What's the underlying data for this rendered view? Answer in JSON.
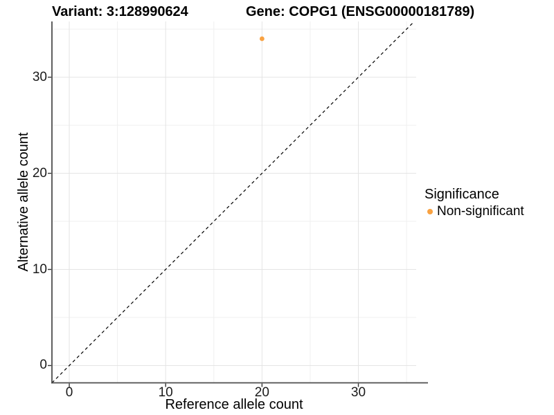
{
  "figure": {
    "titles": {
      "variant": "Variant: 3:128990624",
      "gene": "Gene: COPG1 (ENSG00000181789)"
    }
  },
  "legend": {
    "title": "Significance",
    "items": [
      {
        "label": "Non-significant",
        "color": "#F9A242"
      }
    ]
  },
  "chart_data": {
    "type": "scatter",
    "titles": [
      "Variant: 3:128990624",
      "Gene: COPG1 (ENSG00000181789)"
    ],
    "xlabel": "Reference allele count",
    "ylabel": "Alternative allele count",
    "xlim": [
      -1.8,
      36.0
    ],
    "ylim": [
      -1.8,
      35.8
    ],
    "x_ticks": [
      0,
      10,
      20,
      30
    ],
    "y_ticks": [
      0,
      10,
      20,
      30
    ],
    "x_minor_ticks": [
      5,
      15,
      25,
      35
    ],
    "y_minor_ticks": [
      5,
      15,
      25,
      35
    ],
    "grid": "major+minor",
    "legend_position": "right",
    "series": [
      {
        "name": "Non-significant",
        "color": "#F9A242",
        "marker": "circle",
        "points": [
          {
            "x": 20,
            "y": 34
          }
        ]
      }
    ],
    "reference_line": {
      "type": "identity y=x",
      "style": "dashed",
      "color": "#000000"
    }
  }
}
